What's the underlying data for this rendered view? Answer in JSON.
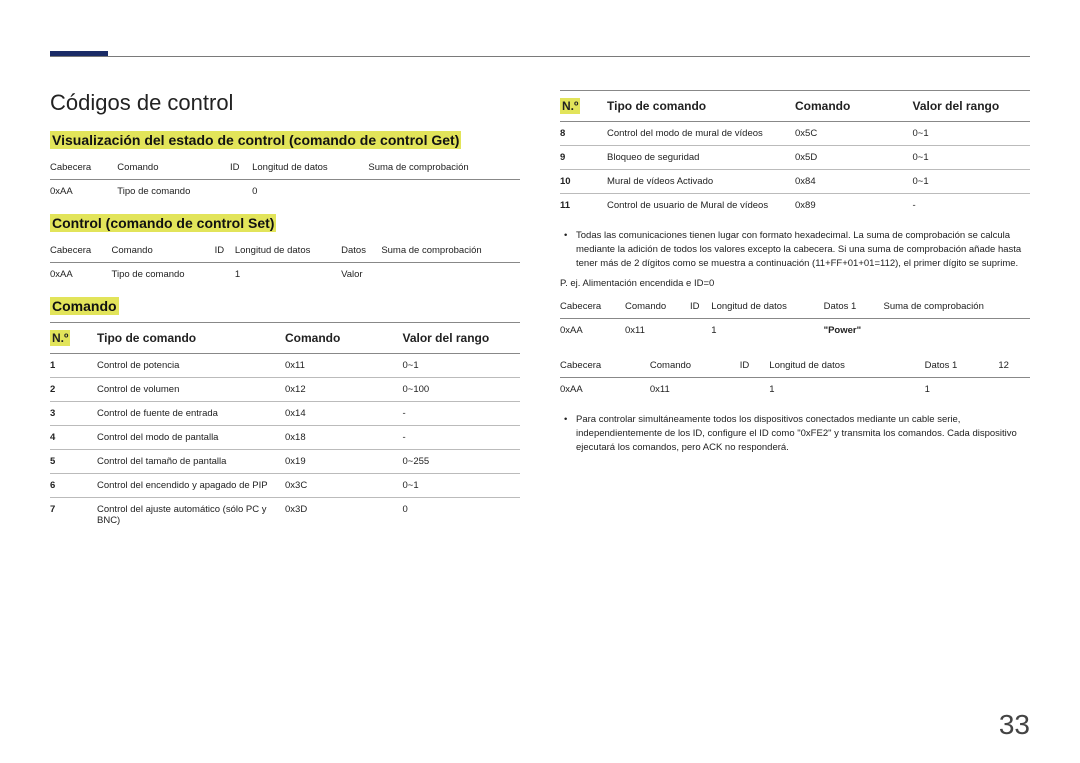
{
  "page_number": "33",
  "title": "Códigos de control",
  "sec_get": {
    "heading": "Visualización del estado de control (comando de control Get)",
    "headers": [
      "Cabecera",
      "Comando",
      "ID",
      "Longitud de datos",
      "Suma de comprobación"
    ],
    "row": [
      "0xAA",
      "Tipo de comando",
      "",
      "0",
      ""
    ]
  },
  "sec_set": {
    "heading": "Control (comando de control Set)",
    "headers": [
      "Cabecera",
      "Comando",
      "ID",
      "Longitud de datos",
      "Datos",
      "Suma de comprobación"
    ],
    "row": [
      "0xAA",
      "Tipo de comando",
      "",
      "1",
      "Valor",
      ""
    ]
  },
  "sec_cmd": {
    "heading": "Comando",
    "columns": [
      "N.º",
      "Tipo de comando",
      "Comando",
      "Valor del rango"
    ],
    "rows_left": [
      [
        "1",
        "Control de potencia",
        "0x11",
        "0~1"
      ],
      [
        "2",
        "Control de volumen",
        "0x12",
        "0~100"
      ],
      [
        "3",
        "Control de fuente de entrada",
        "0x14",
        "-"
      ],
      [
        "4",
        "Control del modo de pantalla",
        "0x18",
        "-"
      ],
      [
        "5",
        "Control del tamaño de pantalla",
        "0x19",
        "0~255"
      ],
      [
        "6",
        "Control del encendido y apagado de PIP",
        "0x3C",
        "0~1"
      ],
      [
        "7",
        "Control del ajuste automático (sólo PC y BNC)",
        "0x3D",
        "0"
      ]
    ],
    "rows_right": [
      [
        "8",
        "Control del modo de mural de vídeos",
        "0x5C",
        "0~1"
      ],
      [
        "9",
        "Bloqueo de seguridad",
        "0x5D",
        "0~1"
      ],
      [
        "10",
        "Mural de vídeos Activado",
        "0x84",
        "0~1"
      ],
      [
        "11",
        "Control de usuario de Mural de vídeos",
        "0x89",
        "-"
      ]
    ]
  },
  "note1": "Todas las comunicaciones tienen lugar con formato hexadecimal. La suma de comprobación se calcula mediante la adición de todos los valores excepto la cabecera. Si una suma de comprobación añade hasta tener más de 2 dígitos como se muestra a continuación (11+FF+01+01=112), el primer dígito se suprime.",
  "note_ex": "P. ej. Alimentación encendida e ID=0",
  "tbl_ex1": {
    "headers": [
      "Cabecera",
      "Comando",
      "ID",
      "Longitud de datos",
      "Datos 1",
      "Suma de comprobación"
    ],
    "row": [
      "0xAA",
      "0x11",
      "",
      "1",
      "\"Power\"",
      ""
    ]
  },
  "tbl_ex2": {
    "headers": [
      "Cabecera",
      "Comando",
      "ID",
      "Longitud de datos",
      "Datos 1",
      "12"
    ],
    "row": [
      "0xAA",
      "0x11",
      "",
      "1",
      "1",
      ""
    ]
  },
  "note2": "Para controlar simultáneamente todos los dispositivos conectados mediante un cable serie, independientemente de los ID, configure el ID como \"0xFE2\" y transmita los comandos. Cada dispositivo ejecutará los comandos, pero ACK no responderá."
}
